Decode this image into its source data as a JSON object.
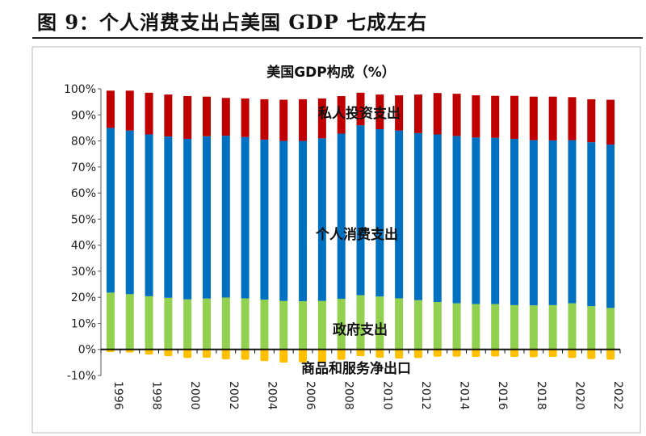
{
  "figure_title": "图 9：个人消费支出占美国 GDP 七成左右",
  "chart_data": {
    "type": "bar",
    "stacked": true,
    "title": "美国GDP构成（%）",
    "xlabel": "",
    "ylabel": "",
    "ylim": [
      -10,
      100
    ],
    "yticks": [
      "-10%",
      "0%",
      "10%",
      "20%",
      "30%",
      "40%",
      "50%",
      "60%",
      "70%",
      "80%",
      "90%",
      "100%"
    ],
    "grid": false,
    "legend": "inline labels",
    "categories": [
      1996,
      1997,
      1998,
      1999,
      2000,
      2001,
      2002,
      2003,
      2004,
      2005,
      2006,
      2007,
      2008,
      2009,
      2010,
      2011,
      2012,
      2013,
      2014,
      2015,
      2016,
      2017,
      2018,
      2019,
      2020,
      2021,
      2022
    ],
    "xtick_labels": [
      "1996",
      "1998",
      "2000",
      "2002",
      "2004",
      "2006",
      "2008",
      "2010",
      "2012",
      "2014",
      "2016",
      "2018",
      "2020",
      "2022"
    ],
    "series": [
      {
        "name": "政府支出",
        "color": "#92d050",
        "values": [
          21.8,
          21.2,
          20.4,
          19.8,
          19.2,
          19.5,
          19.9,
          19.6,
          19.1,
          18.6,
          18.5,
          18.6,
          19.4,
          20.8,
          20.3,
          19.6,
          18.9,
          18.2,
          17.7,
          17.4,
          17.4,
          17.0,
          16.9,
          17.0,
          17.7,
          16.6,
          15.9
        ]
      },
      {
        "name": "个人消费支出",
        "color": "#0070c0",
        "values": [
          63.2,
          62.8,
          62.1,
          61.9,
          61.6,
          62.3,
          62.1,
          61.9,
          61.4,
          61.4,
          61.5,
          62.4,
          63.4,
          65.2,
          64.2,
          64.4,
          64.1,
          64.3,
          64.2,
          63.9,
          63.8,
          63.8,
          63.4,
          63.2,
          62.6,
          62.9,
          62.7
        ]
      },
      {
        "name": "私人投资支出",
        "color": "#c00000",
        "values": [
          14.3,
          15.3,
          16.0,
          16.1,
          16.4,
          15.2,
          14.5,
          14.8,
          15.5,
          15.8,
          16.0,
          15.3,
          14.4,
          12.5,
          13.3,
          13.5,
          14.8,
          15.9,
          16.2,
          16.2,
          16.1,
          16.5,
          16.7,
          16.8,
          16.5,
          16.5,
          17.2
        ]
      },
      {
        "name": "商品和服务净出口",
        "color": "#ffc000",
        "values": [
          -1.0,
          -1.2,
          -2.0,
          -2.6,
          -3.3,
          -3.2,
          -3.8,
          -4.0,
          -4.5,
          -5.1,
          -5.0,
          -4.8,
          -4.0,
          -2.6,
          -3.2,
          -3.5,
          -3.3,
          -2.8,
          -2.8,
          -2.9,
          -2.7,
          -2.9,
          -3.0,
          -2.9,
          -3.3,
          -3.7,
          -3.9
        ]
      }
    ]
  }
}
